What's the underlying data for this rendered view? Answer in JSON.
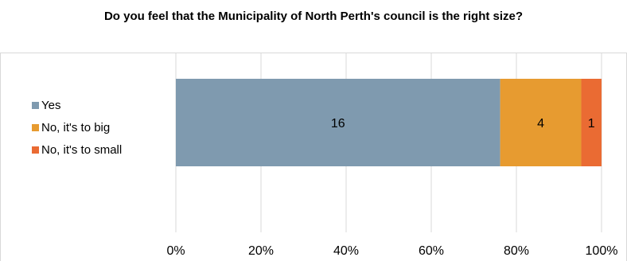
{
  "chart_data": {
    "type": "bar",
    "orientation": "horizontal",
    "stacked": "percent",
    "title": "Do you feel that the Municipality of North Perth's council is the right size?",
    "xlabel": "",
    "ylabel": "",
    "xlim": [
      0,
      100
    ],
    "x_ticks": [
      "0%",
      "20%",
      "40%",
      "60%",
      "80%",
      "100%"
    ],
    "grid": true,
    "legend_position": "left",
    "categories": [
      ""
    ],
    "series": [
      {
        "name": "Yes",
        "values": [
          16
        ],
        "color": "#7f9aaf"
      },
      {
        "name": "No, it's to big",
        "values": [
          4
        ],
        "color": "#e79b30"
      },
      {
        "name": "No, it's to small",
        "values": [
          1
        ],
        "color": "#ea6b33"
      }
    ]
  }
}
